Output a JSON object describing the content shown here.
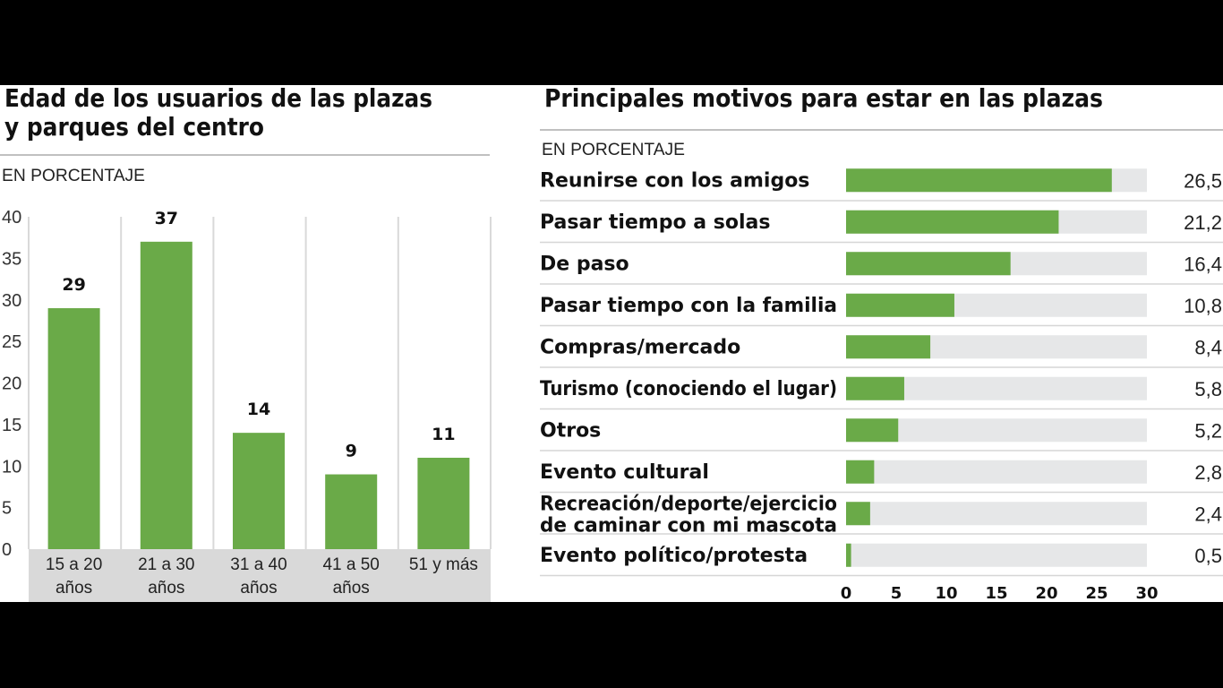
{
  "colors": {
    "bar": "#6aaa48",
    "track": "#e6e7e8",
    "grid": "#d9d9d9",
    "axisband": "#d9d9d9"
  },
  "chart_data": [
    {
      "type": "bar",
      "title_line1": "Edad de los usuarios de las plazas",
      "title_line2": "y parques del centro",
      "subtitle": "EN PORCENTAJE",
      "categories": [
        [
          "15 a 20",
          "años"
        ],
        [
          "21 a 30",
          "años"
        ],
        [
          "31 a 40",
          "años"
        ],
        [
          "41 a 50",
          "años"
        ],
        [
          "51 y más",
          ""
        ]
      ],
      "values": [
        29,
        37,
        14,
        9,
        11
      ],
      "ylim": [
        0,
        40
      ],
      "yticks": [
        0,
        5,
        10,
        15,
        20,
        25,
        30,
        35,
        40
      ],
      "grid": true
    },
    {
      "type": "bar",
      "orientation": "horizontal",
      "title": "Principales motivos para estar en las plazas",
      "subtitle": "EN PORCENTAJE",
      "categories": [
        [
          "Reunirse con los amigos"
        ],
        [
          "Pasar tiempo a solas"
        ],
        [
          "De paso"
        ],
        [
          "Pasar tiempo con la familia"
        ],
        [
          "Compras/mercado"
        ],
        [
          "Turismo (conociendo el lugar)"
        ],
        [
          "Otros"
        ],
        [
          "Evento cultural"
        ],
        [
          "Recreación/deporte/ejercicio",
          "de caminar con mi mascota"
        ],
        [
          "Evento político/protesta"
        ]
      ],
      "values": [
        26.5,
        21.2,
        16.4,
        10.8,
        8.4,
        5.8,
        5.2,
        2.8,
        2.4,
        0.5
      ],
      "value_labels": [
        "26,5",
        "21,2",
        "16,4",
        "10,8",
        "8,4",
        "5,8",
        "5,2",
        "2,8",
        "2,4",
        "0,5"
      ],
      "xlim": [
        0,
        30
      ],
      "xticks": [
        0,
        5,
        10,
        15,
        20,
        25,
        30
      ]
    }
  ]
}
